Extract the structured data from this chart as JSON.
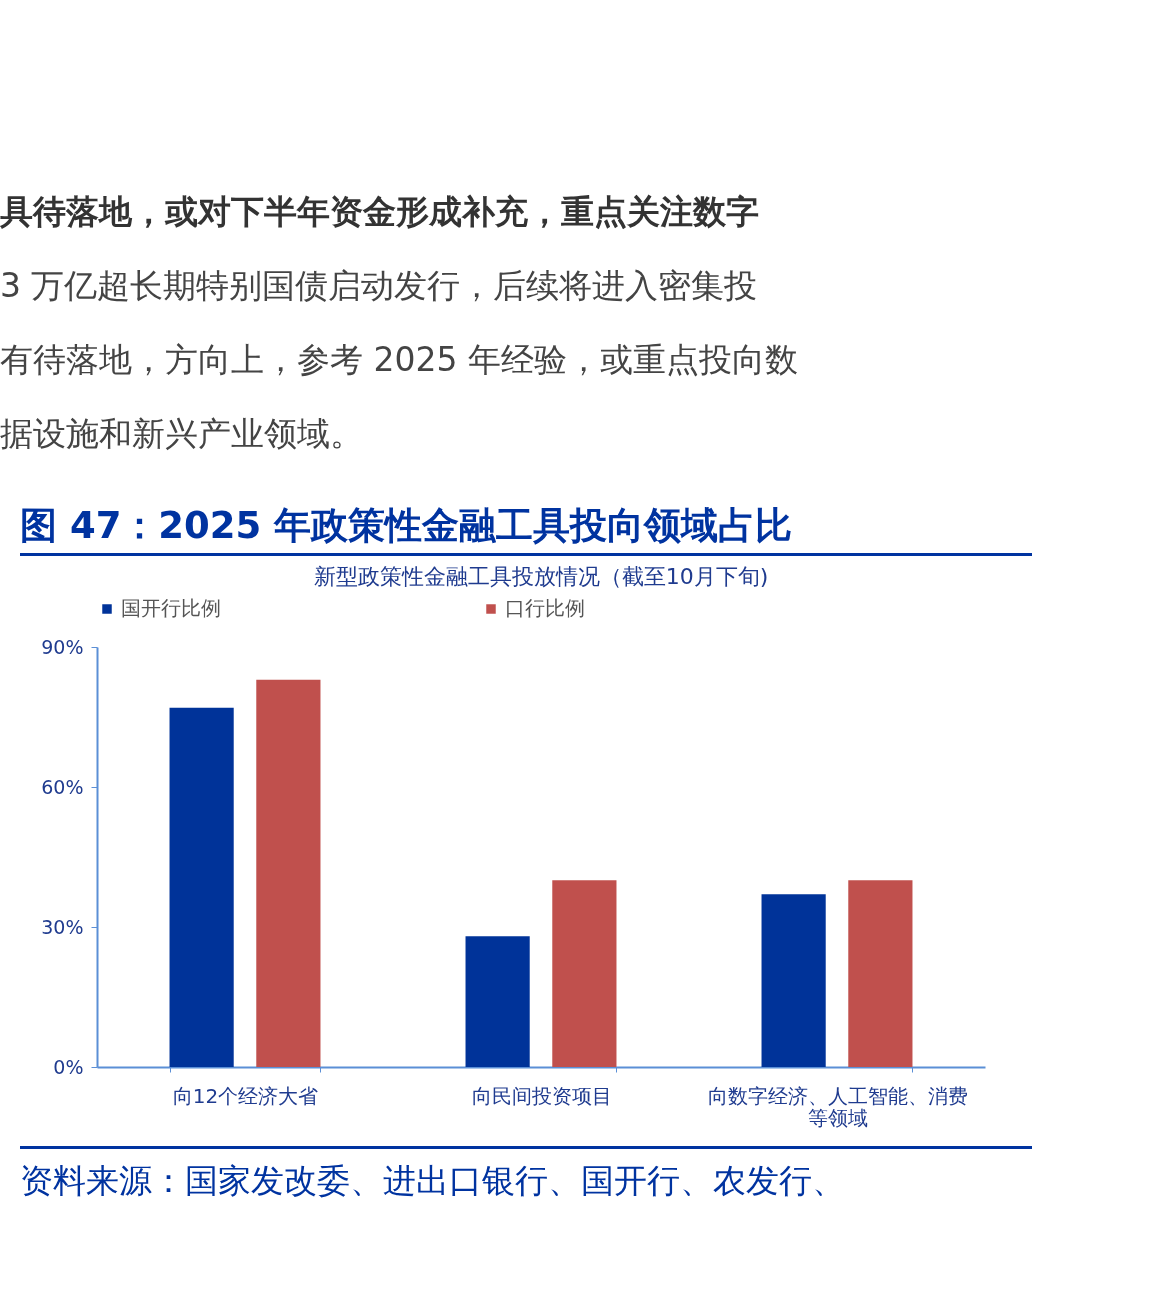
{
  "chart_data": {
    "type": "bar",
    "title": "图 47：2025 年政策性金融工具投向领域占比",
    "subtitle": "新型政策性金融工具投放情况（截至10月下旬)",
    "annotations": [
      "具待落地，或对下半年资金形成补充，重点关注数字",
      "3 万亿超长期特别国债启动发行，后续将进入密集投",
      "有待落地，方向上，参考 2025 年经验，或重点投向数",
      "据设施和新兴产业领域。",
      "资料来源：国家发改委、进出口银行、国开行、农发行、"
    ],
    "categories": [
      "向12个经济大省",
      "向民间投资项目",
      "向数字经济、人工智能、消费等领域"
    ],
    "series": [
      {
        "name": "国开行比例",
        "color": "#003399",
        "values": [
          77,
          28,
          37
        ]
      },
      {
        "name": "口行比例",
        "color": "#c0504d",
        "values": [
          83,
          40,
          40
        ]
      }
    ],
    "ylim": [
      0,
      90
    ],
    "yticks": [
      {
        "value": 0,
        "label": "0%"
      },
      {
        "value": 30,
        "label": "30%"
      },
      {
        "value": 60,
        "label": "60%"
      },
      {
        "value": 90,
        "label": "90%"
      }
    ],
    "grid": false,
    "legend": "top"
  }
}
